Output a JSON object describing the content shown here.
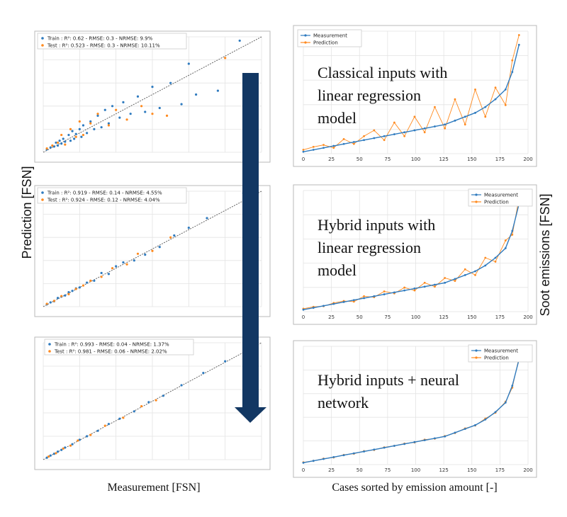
{
  "figure": {
    "ylabel_left": "Prediction [FSN]",
    "xlabel_left": "Measurement [FSN]",
    "ylabel_right": "Soot emissions [FSN]",
    "xlabel_right": "Cases sorted by emission amount [-]",
    "arrow_color": "#123763"
  },
  "colors": {
    "train": "#2f7bbf",
    "test": "#ff8a1f",
    "measurement": "#2f7bbf",
    "prediction": "#ff8a1f"
  },
  "chart_data": [
    {
      "type": "scatter",
      "panel": "top-left",
      "xlabel": "",
      "ylabel": "",
      "grid": true,
      "legend_position": "top-left",
      "legend": [
        "Train : R²: 0.62 - RMSE: 0.3 - NRMSE: 9.9%",
        "Test : R²: 0.523 - RMSE: 0.3 - NRMSE: 10.11%"
      ],
      "series": [
        {
          "label_id": "train",
          "x": [
            0.1,
            0.2,
            0.3,
            0.35,
            0.4,
            0.45,
            0.5,
            0.55,
            0.6,
            0.7,
            0.75,
            0.8,
            0.85,
            0.9,
            1.0,
            1.05,
            1.1,
            1.2,
            1.3,
            1.4,
            1.5,
            1.6,
            1.7,
            1.8,
            1.9,
            2.1,
            2.2,
            2.4,
            2.6,
            2.8,
            3.0,
            3.2,
            3.5,
            3.8,
            4.0,
            4.2,
            4.8,
            5.4
          ],
          "y": [
            0.15,
            0.25,
            0.3,
            0.5,
            0.35,
            0.6,
            0.45,
            0.7,
            0.55,
            0.9,
            0.6,
            1.1,
            0.7,
            0.95,
            1.2,
            0.8,
            1.4,
            1.0,
            1.6,
            1.2,
            1.9,
            1.3,
            2.2,
            1.5,
            2.4,
            1.8,
            2.6,
            2.0,
            2.9,
            2.1,
            3.4,
            2.3,
            3.6,
            2.5,
            4.6,
            3.0,
            3.2,
            5.8
          ]
        },
        {
          "label_id": "test",
          "x": [
            0.1,
            0.25,
            0.4,
            0.5,
            0.6,
            0.75,
            0.9,
            1.0,
            1.1,
            1.3,
            1.5,
            1.8,
            2.0,
            2.3,
            2.7,
            3.0,
            3.4,
            5.0
          ],
          "y": [
            0.2,
            0.35,
            0.5,
            0.9,
            0.4,
            1.2,
            0.8,
            1.6,
            0.9,
            1.5,
            2.0,
            1.4,
            2.2,
            1.7,
            2.4,
            2.0,
            1.9,
            4.9
          ]
        }
      ]
    },
    {
      "type": "line",
      "panel": "top-right",
      "legend_position": "top-left",
      "series": [
        {
          "name": "Measurement",
          "values": [
            0.1,
            0.2,
            0.3,
            0.4,
            0.5,
            0.6,
            0.7,
            0.8,
            0.9,
            1.0,
            1.1,
            1.2,
            1.3,
            1.4,
            1.5,
            1.7,
            1.9,
            2.1,
            2.4,
            2.8,
            3.3,
            4.2,
            5.6
          ]
        },
        {
          "name": "Prediction",
          "values": [
            0.2,
            0.35,
            0.45,
            0.3,
            0.75,
            0.5,
            0.9,
            1.2,
            0.7,
            1.6,
            0.9,
            1.9,
            1.1,
            2.4,
            1.3,
            2.8,
            1.5,
            3.3,
            1.9,
            3.4,
            2.5,
            4.8,
            6.1
          ]
        }
      ],
      "x": [
        0,
        9,
        18,
        27,
        36,
        45,
        54,
        63,
        72,
        81,
        90,
        99,
        108,
        117,
        126,
        135,
        144,
        153,
        162,
        171,
        180,
        186,
        192
      ],
      "caption": "Classical inputs with linear regression model",
      "x_ticks": [
        0,
        25,
        50,
        75,
        100,
        125,
        150,
        175,
        200
      ],
      "grid": true
    },
    {
      "type": "scatter",
      "panel": "middle-left",
      "grid": true,
      "legend_position": "top-left",
      "legend": [
        "Train : R²: 0.919 - RMSE: 0.14 - NRMSE: 4.55%",
        "Test : R²: 0.924 - RMSE: 0.12 - NRMSE: 4.04%"
      ],
      "series": [
        {
          "label_id": "train",
          "x": [
            0.1,
            0.2,
            0.3,
            0.4,
            0.5,
            0.6,
            0.7,
            0.8,
            0.9,
            1.0,
            1.2,
            1.4,
            1.6,
            1.8,
            2.0,
            2.2,
            2.5,
            2.8,
            3.2,
            3.6,
            4.0,
            4.5,
            5.5
          ],
          "y": [
            0.12,
            0.22,
            0.28,
            0.45,
            0.52,
            0.58,
            0.75,
            0.82,
            0.95,
            1.0,
            1.25,
            1.35,
            1.75,
            1.7,
            2.1,
            2.3,
            2.4,
            2.7,
            3.1,
            3.7,
            4.1,
            4.6,
            5.9
          ]
        },
        {
          "label_id": "test",
          "x": [
            0.1,
            0.3,
            0.5,
            0.7,
            0.9,
            1.1,
            1.3,
            1.6,
            1.9,
            2.3,
            2.6,
            3.0,
            3.5
          ],
          "y": [
            0.15,
            0.3,
            0.55,
            0.65,
            0.92,
            1.1,
            1.35,
            1.55,
            2.0,
            2.2,
            2.75,
            2.9,
            3.6
          ]
        }
      ]
    },
    {
      "type": "line",
      "panel": "middle-right",
      "legend_position": "top-right",
      "series": [
        {
          "name": "Measurement",
          "values": [
            0.1,
            0.2,
            0.3,
            0.4,
            0.5,
            0.6,
            0.7,
            0.8,
            0.9,
            1.0,
            1.1,
            1.2,
            1.3,
            1.4,
            1.5,
            1.7,
            1.9,
            2.1,
            2.4,
            2.8,
            3.3,
            4.2,
            5.6
          ]
        },
        {
          "name": "Prediction",
          "values": [
            0.15,
            0.25,
            0.28,
            0.45,
            0.55,
            0.52,
            0.8,
            0.75,
            1.05,
            0.95,
            1.25,
            1.1,
            1.5,
            1.3,
            1.75,
            1.6,
            2.2,
            1.9,
            2.8,
            2.6,
            3.7,
            4.0,
            5.9
          ]
        }
      ],
      "x": [
        0,
        9,
        18,
        27,
        36,
        45,
        54,
        63,
        72,
        81,
        90,
        99,
        108,
        117,
        126,
        135,
        144,
        153,
        162,
        171,
        180,
        186,
        192
      ],
      "caption": "Hybrid inputs with linear regression model",
      "x_ticks": [
        0,
        25,
        50,
        75,
        100,
        125,
        150,
        175,
        200
      ],
      "grid": true
    },
    {
      "type": "scatter",
      "panel": "bottom-left",
      "grid": true,
      "legend_position": "top-right",
      "legend": [
        "Train : R²: 0.993 - RMSE: 0.04 - NRMSE: 1.37%",
        "Test : R²: 0.981 - RMSE: 0.06 - NRMSE: 2.02%"
      ],
      "series": [
        {
          "label_id": "train",
          "x": [
            0.1,
            0.2,
            0.3,
            0.4,
            0.5,
            0.6,
            0.8,
            1.0,
            1.2,
            1.5,
            1.8,
            2.1,
            2.5,
            2.9,
            3.3,
            3.8,
            4.4,
            5.0,
            5.6
          ],
          "y": [
            0.1,
            0.21,
            0.3,
            0.41,
            0.5,
            0.62,
            0.79,
            1.02,
            1.2,
            1.48,
            1.83,
            2.1,
            2.48,
            2.95,
            3.28,
            3.82,
            4.45,
            5.05,
            5.55
          ]
        },
        {
          "label_id": "test",
          "x": [
            0.15,
            0.35,
            0.55,
            0.75,
            0.95,
            1.3,
            1.7,
            2.2,
            2.7,
            3.1
          ],
          "y": [
            0.16,
            0.33,
            0.57,
            0.72,
            0.98,
            1.27,
            1.74,
            2.15,
            2.74,
            3.05
          ]
        }
      ]
    },
    {
      "type": "line",
      "panel": "bottom-right",
      "legend_position": "top-right",
      "series": [
        {
          "name": "Measurement",
          "values": [
            0.1,
            0.2,
            0.3,
            0.4,
            0.5,
            0.6,
            0.7,
            0.8,
            0.9,
            1.0,
            1.1,
            1.2,
            1.3,
            1.4,
            1.5,
            1.7,
            1.9,
            2.1,
            2.4,
            2.8,
            3.3,
            4.2,
            5.6
          ]
        },
        {
          "name": "Prediction",
          "values": [
            0.12,
            0.2,
            0.32,
            0.38,
            0.52,
            0.58,
            0.72,
            0.78,
            0.92,
            1.0,
            1.12,
            1.18,
            1.33,
            1.38,
            1.52,
            1.68,
            1.93,
            2.08,
            2.45,
            2.76,
            3.35,
            4.1,
            5.7
          ]
        }
      ],
      "x": [
        0,
        9,
        18,
        27,
        36,
        45,
        54,
        63,
        72,
        81,
        90,
        99,
        108,
        117,
        126,
        135,
        144,
        153,
        162,
        171,
        180,
        186,
        192
      ],
      "caption": "Hybrid inputs + neural network",
      "x_ticks": [
        0,
        25,
        50,
        75,
        100,
        125,
        150,
        175,
        200
      ],
      "grid": true
    }
  ]
}
